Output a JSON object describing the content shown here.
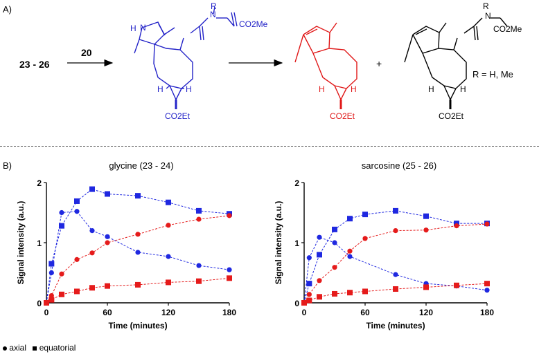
{
  "panelA": {
    "label": "A)",
    "reactant": "23 - 26",
    "reagent": "20",
    "intermediate": {
      "nh": "N",
      "h_on_n": "H",
      "n_r": "N",
      "r": "R",
      "co2me": "CO2Me",
      "co2et": "CO2Et",
      "h_left": "H",
      "h_right": "H"
    },
    "product1": {
      "co2et": "CO2Et",
      "h_left": "H",
      "h_right": "H"
    },
    "plus": "+",
    "product2": {
      "r": "R",
      "n_r": "N",
      "co2me": "CO2Me",
      "co2et": "CO2Et",
      "h_left": "H",
      "h_right": "H"
    },
    "r_definition": "R = H, Me",
    "colors": {
      "intermediate": "#2323c8",
      "product1": "#e01818",
      "product2": "#000000"
    }
  },
  "panelB": {
    "label": "B)",
    "legend": {
      "axial": "axial",
      "equatorial": "equatorial"
    }
  },
  "chart_data": [
    {
      "type": "scatter",
      "title": "glycine (23 - 24)",
      "xlabel": "Time (minutes)",
      "ylabel": "Signal intensity (a.u.)",
      "xlim": [
        0,
        180
      ],
      "ylim": [
        0,
        2
      ],
      "xticks": [
        0,
        60,
        120,
        180
      ],
      "yticks": [
        0,
        1,
        2
      ],
      "series": [
        {
          "marker": "circle",
          "color": "#1f28e0",
          "x": [
            0,
            5,
            15,
            30,
            45,
            60,
            90,
            120,
            150,
            180
          ],
          "y": [
            0,
            0.5,
            1.5,
            1.52,
            1.2,
            1.1,
            0.84,
            0.77,
            0.62,
            0.55
          ]
        },
        {
          "marker": "square",
          "color": "#1f28e0",
          "x": [
            0,
            5,
            15,
            30,
            45,
            60,
            90,
            120,
            150,
            180
          ],
          "y": [
            0,
            0.65,
            1.28,
            1.69,
            1.89,
            1.81,
            1.78,
            1.67,
            1.53,
            1.48
          ]
        },
        {
          "marker": "circle",
          "color": "#e51b1b",
          "x": [
            0,
            5,
            15,
            30,
            45,
            60,
            90,
            120,
            150,
            180
          ],
          "y": [
            0,
            0.12,
            0.48,
            0.72,
            0.83,
            1.0,
            1.14,
            1.29,
            1.39,
            1.45
          ]
        },
        {
          "marker": "square",
          "color": "#e51b1b",
          "x": [
            0,
            5,
            15,
            30,
            45,
            60,
            90,
            120,
            150,
            180
          ],
          "y": [
            0,
            0.05,
            0.14,
            0.19,
            0.25,
            0.28,
            0.3,
            0.34,
            0.36,
            0.41
          ]
        }
      ]
    },
    {
      "type": "scatter",
      "title": "sarcosine (25 - 26)",
      "xlabel": "Time (minutes)",
      "ylabel": "Signal intensity (a.u.)",
      "xlim": [
        0,
        180
      ],
      "ylim": [
        0,
        2
      ],
      "xticks": [
        0,
        60,
        120,
        180
      ],
      "yticks": [
        0,
        1,
        2
      ],
      "series": [
        {
          "marker": "circle",
          "color": "#1f28e0",
          "x": [
            0,
            5,
            15,
            30,
            45,
            90,
            120,
            150,
            180
          ],
          "y": [
            0,
            0.75,
            1.09,
            1.0,
            0.77,
            0.47,
            0.32,
            0.28,
            0.21
          ]
        },
        {
          "marker": "square",
          "color": "#1f28e0",
          "x": [
            0,
            5,
            15,
            30,
            45,
            60,
            90,
            120,
            150,
            180
          ],
          "y": [
            0,
            0.32,
            0.8,
            1.22,
            1.4,
            1.47,
            1.53,
            1.44,
            1.32,
            1.32
          ]
        },
        {
          "marker": "circle",
          "color": "#e51b1b",
          "x": [
            0,
            5,
            15,
            30,
            45,
            60,
            90,
            120,
            150,
            180
          ],
          "y": [
            0,
            0.14,
            0.37,
            0.59,
            0.86,
            1.07,
            1.2,
            1.21,
            1.28,
            1.31
          ]
        },
        {
          "marker": "square",
          "color": "#e51b1b",
          "x": [
            0,
            5,
            15,
            30,
            45,
            60,
            90,
            120,
            150,
            180
          ],
          "y": [
            0,
            0.04,
            0.1,
            0.15,
            0.17,
            0.19,
            0.23,
            0.26,
            0.29,
            0.32
          ]
        }
      ]
    }
  ]
}
